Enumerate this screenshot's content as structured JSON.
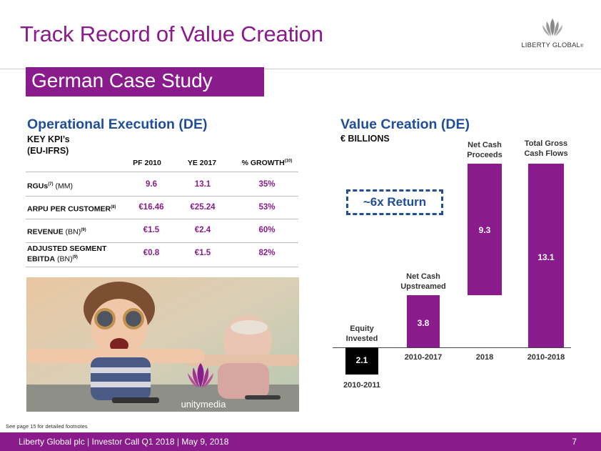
{
  "header": {
    "title": "Track Record of Value Creation",
    "brand": "LIBERTY GLOBAL",
    "brand_mark": "®"
  },
  "badge": {
    "label": "German Case Study"
  },
  "operational": {
    "title": "Operational Execution (DE)",
    "kpi_label_line1": "KEY KPI’s",
    "kpi_label_line2": "(EU-IFRS)",
    "columns": [
      "PF 2010",
      "YE 2017",
      "% GROWTH"
    ],
    "growth_note": "(10)",
    "rows": [
      {
        "label": "RGUs",
        "note": "(7)",
        "unit": " (MM)",
        "pf2010": "9.6",
        "ye2017": "13.1",
        "growth": "35%"
      },
      {
        "label": "ARPU PER CUSTOMER",
        "note": "(8)",
        "unit": "",
        "pf2010": "€16.46",
        "ye2017": "€25.24",
        "growth": "53%"
      },
      {
        "label": "REVENUE",
        "note": "(9)",
        "unit": " (BN)",
        "pf2010": "€1.5",
        "ye2017": "€2.4",
        "growth": "60%"
      },
      {
        "label": "ADJUSTED SEGMENT",
        "label2": "EBITDA",
        "note": "(9)",
        "unit": " (BN)",
        "pf2010": "€0.8",
        "ye2017": "€1.5",
        "growth": "82%"
      }
    ]
  },
  "photo": {
    "brand": "unitymedia"
  },
  "value_creation": {
    "title": "Value Creation (DE)",
    "unit_label": "€ BILLIONS",
    "callout": "~6x Return"
  },
  "chart_data": {
    "type": "bar",
    "title": "Value Creation (DE)",
    "unit": "€ BILLIONS",
    "baseline": 0,
    "bars": [
      {
        "name": "Equity Invested",
        "label_line1": "Equity",
        "label_line2": "Invested",
        "period": "2010-2011",
        "value": 2.1,
        "display": "2.1",
        "direction": "down",
        "color": "#000000"
      },
      {
        "name": "Net Cash Upstreamed",
        "label_line1": "Net Cash",
        "label_line2": "Upstreamed",
        "period": "2010-2017",
        "value": 3.8,
        "display": "3.8",
        "direction": "up",
        "color": "#8a1b8c"
      },
      {
        "name": "Net Cash Proceeds",
        "label_line1": "Net Cash",
        "label_line2": "Proceeds",
        "period": "2018",
        "value": 9.3,
        "display": "9.3",
        "direction": "up-stacked",
        "color": "#8a1b8c"
      },
      {
        "name": "Total Gross Cash Flows",
        "label_line1": "Total Gross",
        "label_line2": "Cash Flows",
        "period": "2010-2018",
        "value": 13.1,
        "display": "13.1",
        "direction": "up",
        "color": "#8a1b8c"
      }
    ]
  },
  "footer": {
    "footnote": "See page 15 for detailed footnotes",
    "text": "Liberty Global plc | Investor Call Q1 2018 | May 9, 2018",
    "page": "7"
  },
  "colors": {
    "accent": "#8a1b8c",
    "blue": "#1f4e9a"
  }
}
